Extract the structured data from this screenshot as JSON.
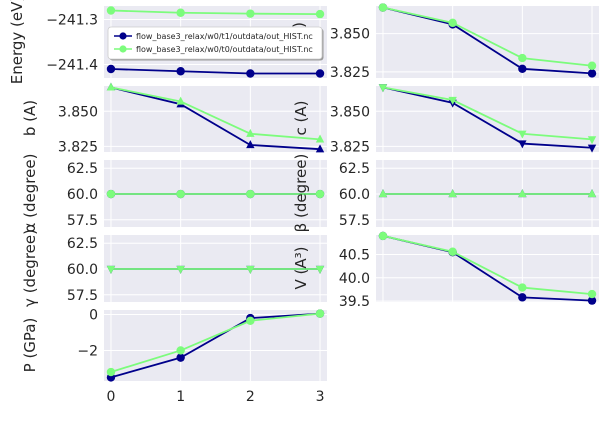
{
  "colors": {
    "s1": "#00008b",
    "s2": "#7cfc7c",
    "panel": "#eaeaf2",
    "grid": "#ffffff",
    "text": "#262626"
  },
  "legend": {
    "entries": [
      "flow_base3_relax/w0/t1/outdata/out_HIST.nc",
      "flow_base3_relax/w0/t0/outdata/out_HIST.nc"
    ]
  },
  "chart_data": [
    {
      "id": "energy",
      "type": "line",
      "ylabel": "Energy (eV)",
      "x": [
        0,
        1,
        2,
        3
      ],
      "xticks": [
        0,
        1,
        2,
        3
      ],
      "yticks": [
        -241.4,
        -241.3
      ],
      "ytick_labels": [
        "−241.4",
        "−241.3"
      ],
      "ylim": [
        -241.43,
        -241.27
      ],
      "xlim": [
        -0.1,
        3.1
      ],
      "series": [
        {
          "name": "flow_base3_relax/w0/t1/outdata/out_HIST.nc",
          "values": [
            -241.41,
            -241.415,
            -241.42,
            -241.42
          ],
          "marker": "circle"
        },
        {
          "name": "flow_base3_relax/w0/t0/outdata/out_HIST.nc",
          "values": [
            -241.28,
            -241.285,
            -241.287,
            -241.288
          ],
          "marker": "circle"
        }
      ]
    },
    {
      "id": "a",
      "type": "line",
      "ylabel": "a (A)",
      "x": [
        0,
        1,
        2,
        3
      ],
      "xticks": [
        0,
        1,
        2,
        3
      ],
      "yticks": [
        3.825,
        3.85
      ],
      "ytick_labels": [
        "3.825",
        "3.850"
      ],
      "ylim": [
        3.821,
        3.868
      ],
      "xlim": [
        -0.1,
        3.1
      ],
      "series": [
        {
          "values": [
            3.867,
            3.856,
            3.827,
            3.824
          ],
          "marker": "circle"
        },
        {
          "values": [
            3.867,
            3.857,
            3.834,
            3.829
          ],
          "marker": "circle"
        }
      ]
    },
    {
      "id": "b",
      "type": "line",
      "ylabel": "b (A)",
      "x": [
        0,
        1,
        2,
        3
      ],
      "xticks": [
        0,
        1,
        2,
        3
      ],
      "yticks": [
        3.825,
        3.85
      ],
      "ytick_labels": [
        "3.825",
        "3.850"
      ],
      "ylim": [
        3.821,
        3.868
      ],
      "xlim": [
        -0.1,
        3.1
      ],
      "series": [
        {
          "values": [
            3.867,
            3.855,
            3.826,
            3.823
          ],
          "marker": "triangle-up"
        },
        {
          "values": [
            3.867,
            3.857,
            3.834,
            3.83
          ],
          "marker": "triangle-up"
        }
      ]
    },
    {
      "id": "c",
      "type": "line",
      "ylabel": "c (A)",
      "x": [
        0,
        1,
        2,
        3
      ],
      "xticks": [
        0,
        1,
        2,
        3
      ],
      "yticks": [
        3.825,
        3.85
      ],
      "ytick_labels": [
        "3.825",
        "3.850"
      ],
      "ylim": [
        3.821,
        3.868
      ],
      "xlim": [
        -0.1,
        3.1
      ],
      "series": [
        {
          "values": [
            3.867,
            3.856,
            3.827,
            3.824
          ],
          "marker": "triangle-down"
        },
        {
          "values": [
            3.867,
            3.858,
            3.834,
            3.83
          ],
          "marker": "triangle-down"
        }
      ]
    },
    {
      "id": "alpha",
      "type": "line",
      "ylabel": "α (degree)",
      "x": [
        0,
        1,
        2,
        3
      ],
      "xticks": [
        0,
        1,
        2,
        3
      ],
      "yticks": [
        57.5,
        60,
        62.5
      ],
      "ytick_labels": [
        "57.5",
        "60.0",
        "62.5"
      ],
      "ylim": [
        56.8,
        63.3
      ],
      "xlim": [
        -0.1,
        3.1
      ],
      "series": [
        {
          "values": [
            60,
            60,
            60,
            60
          ],
          "marker": "circle"
        },
        {
          "values": [
            60,
            60,
            60,
            60
          ],
          "marker": "circle"
        }
      ]
    },
    {
      "id": "beta",
      "type": "line",
      "ylabel": "β (degree)",
      "x": [
        0,
        1,
        2,
        3
      ],
      "xticks": [
        0,
        1,
        2,
        3
      ],
      "yticks": [
        57.5,
        60,
        62.5
      ],
      "ytick_labels": [
        "57.5",
        "60.0",
        "62.5"
      ],
      "ylim": [
        56.8,
        63.3
      ],
      "xlim": [
        -0.1,
        3.1
      ],
      "series": [
        {
          "values": [
            60,
            60,
            60,
            60
          ],
          "marker": "triangle-up"
        },
        {
          "values": [
            60,
            60,
            60,
            60
          ],
          "marker": "triangle-up"
        }
      ]
    },
    {
      "id": "gamma",
      "type": "line",
      "ylabel": "γ (degree)",
      "x": [
        0,
        1,
        2,
        3
      ],
      "xticks": [
        0,
        1,
        2,
        3
      ],
      "yticks": [
        57.5,
        60,
        62.5
      ],
      "ytick_labels": [
        "57.5",
        "60.0",
        "62.5"
      ],
      "ylim": [
        56.8,
        63.3
      ],
      "xlim": [
        -0.1,
        3.1
      ],
      "series": [
        {
          "values": [
            60,
            60,
            60,
            60
          ],
          "marker": "triangle-down"
        },
        {
          "values": [
            60,
            60,
            60,
            60
          ],
          "marker": "triangle-down"
        }
      ]
    },
    {
      "id": "volume",
      "type": "line",
      "ylabel": "V (A³)",
      "x": [
        0,
        1,
        2,
        3
      ],
      "xticks": [
        0,
        1,
        2,
        3
      ],
      "yticks": [
        39.5,
        40,
        40.5
      ],
      "ytick_labels": [
        "39.5",
        "40.0",
        "40.5"
      ],
      "ylim": [
        39.48,
        40.92
      ],
      "xlim": [
        -0.1,
        3.1
      ],
      "series": [
        {
          "values": [
            40.9,
            40.55,
            39.58,
            39.51
          ],
          "marker": "circle"
        },
        {
          "values": [
            40.9,
            40.56,
            39.79,
            39.65
          ],
          "marker": "circle"
        }
      ]
    },
    {
      "id": "pressure",
      "type": "line",
      "ylabel": "P (GPa)",
      "x": [
        0,
        1,
        2,
        3
      ],
      "xticks": [
        0,
        1,
        2,
        3
      ],
      "xtick_labels": [
        "0",
        "1",
        "2",
        "3"
      ],
      "yticks": [
        -2,
        0
      ],
      "ytick_labels": [
        "−2",
        "0"
      ],
      "ylim": [
        -3.7,
        0.25
      ],
      "xlim": [
        -0.1,
        3.1
      ],
      "series": [
        {
          "values": [
            -3.5,
            -2.4,
            -0.2,
            0.05
          ],
          "marker": "circle"
        },
        {
          "values": [
            -3.2,
            -2.0,
            -0.35,
            0.05
          ],
          "marker": "circle"
        }
      ]
    }
  ]
}
